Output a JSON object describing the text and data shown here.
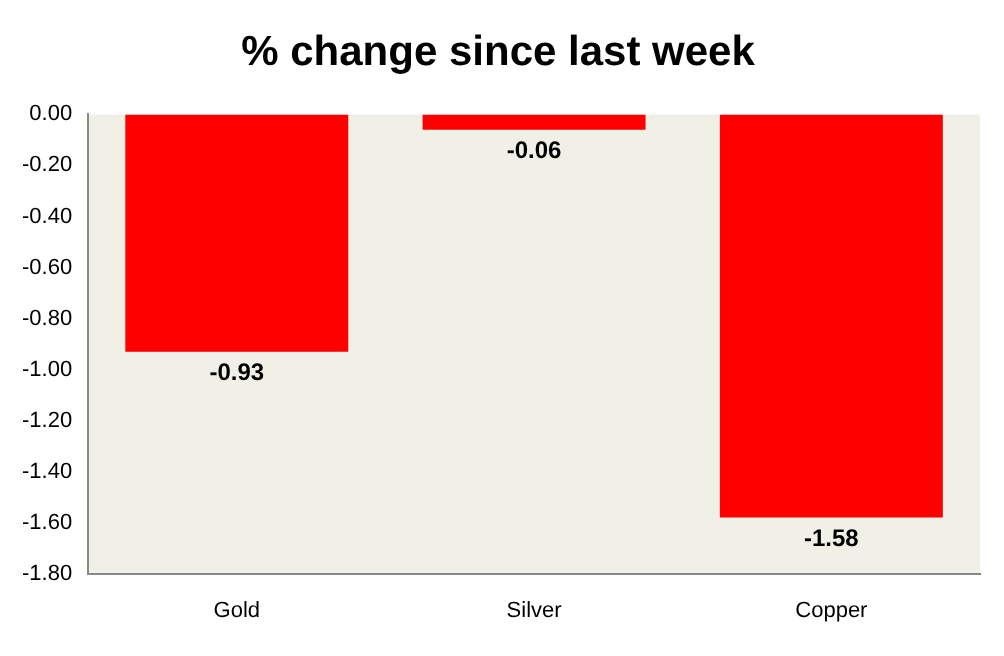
{
  "chart_data": {
    "type": "bar",
    "title": "% change since last week",
    "categories": [
      "Gold",
      "Silver",
      "Copper"
    ],
    "values": [
      -0.93,
      -0.06,
      -1.58
    ],
    "color": "#ff0000",
    "ylim": [
      -1.8,
      0
    ],
    "yticks": [
      {
        "value": 0,
        "label": "0.00"
      },
      {
        "value": -0.2,
        "label": "-0.20"
      },
      {
        "value": -0.4,
        "label": "-0.40"
      },
      {
        "value": -0.6,
        "label": "-0.60"
      },
      {
        "value": -0.8,
        "label": "-0.80"
      },
      {
        "value": -1,
        "label": "-1.00"
      },
      {
        "value": -1.2,
        "label": "-1.20"
      },
      {
        "value": -1.4,
        "label": "-1.40"
      },
      {
        "value": -1.6,
        "label": "-1.60"
      },
      {
        "value": -1.8,
        "label": "-1.80"
      }
    ],
    "data_labels": true,
    "grid": false,
    "legend": false
  }
}
